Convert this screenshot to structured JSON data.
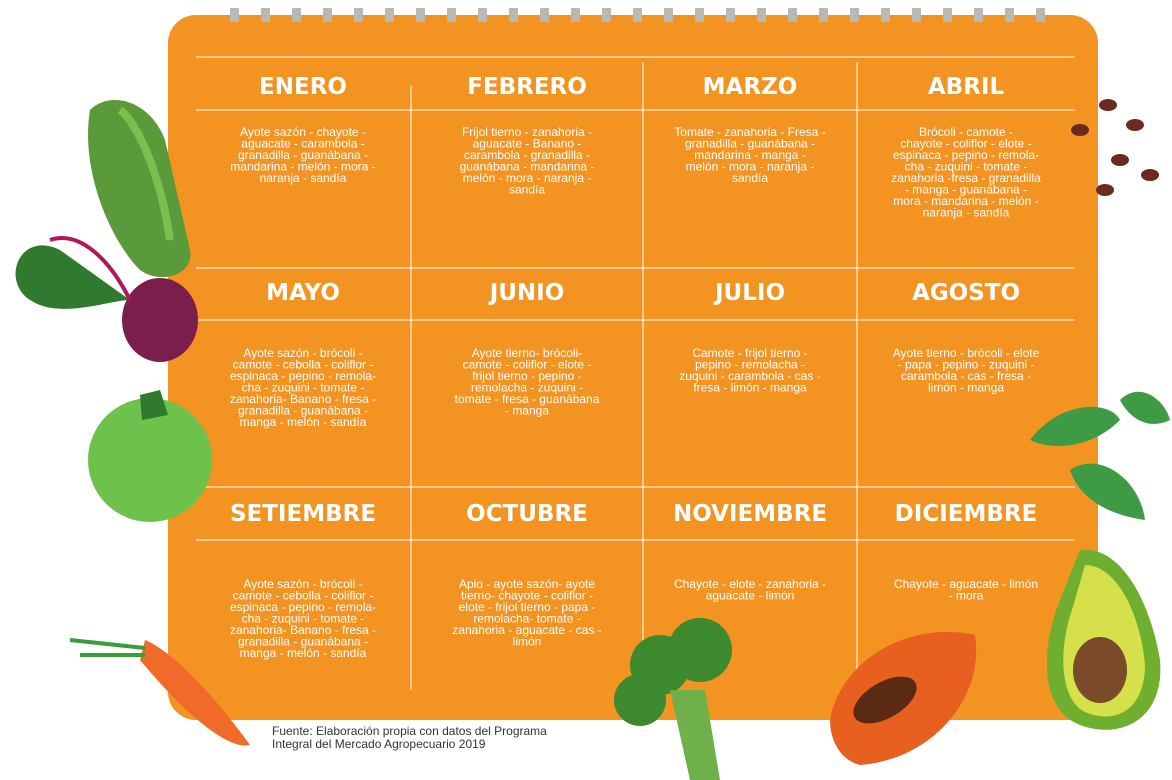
{
  "months": [
    {
      "name": "ENERO",
      "lines": [
        "Ayote sazón - chayote -",
        "aguacate - carambola -",
        "granadilla - guanábana -",
        "mandarina - melón - mora -",
        "naranja - sandía"
      ]
    },
    {
      "name": "FEBRERO",
      "lines": [
        "Frijol tierno - zanahoria -",
        "aguacate - Banano -",
        "carambola - granadilla -",
        "guanábana - mandarina -",
        "melón - mora - naranja -",
        "sandía"
      ]
    },
    {
      "name": "MARZO",
      "lines": [
        "Tomate - zanahoria - Fresa -",
        "granadilla - guanábana -",
        "mandarina - manga -",
        "melón - mora - naranja -",
        "sandía"
      ]
    },
    {
      "name": "ABRIL",
      "lines": [
        "Brócoli - camote -",
        "chayote - coliflor - elote -",
        "espinaca - pepino - remola-",
        "cha - zuquini - tomate -",
        "zanahoria -fresa - granadilla",
        "- manga - guanábana -",
        "mora - mandarina - melón -",
        "naranja - sandía"
      ]
    },
    {
      "name": "MAYO",
      "lines": [
        "Ayote sazón - brócoli -",
        "camote - cebolla - coliflor -",
        "espinaca - pepino - remola-",
        "cha - zuquini - tomate -",
        "zanahoria- Banano - fresa -",
        "granadilla - guanábana -",
        "manga - melón - sandía"
      ]
    },
    {
      "name": "JUNIO",
      "lines": [
        "Ayote tierno- brócoli-",
        "camote - coliflor - elote -",
        "frijol tierno - pepino -",
        "remolacha - zuquini -",
        "tomate - fresa - guanábana",
        "- manga"
      ]
    },
    {
      "name": "JULIO",
      "lines": [
        "Camote - frijol tierno -",
        "pepino - remolacha -",
        "zuquini - carambola - cas -",
        "fresa - limón - manga"
      ]
    },
    {
      "name": "AGOSTO",
      "lines": [
        "Ayote tierno - brócoli - elote",
        "- papa - pepino - zuquini -",
        "carambola - cas - fresa -",
        "limón - manga"
      ]
    },
    {
      "name": "SETIEMBRE",
      "lines": [
        "Ayote sazón - brócoli -",
        "camote - cebolla - coliflor -",
        "espinaca - pepino - remola-",
        "cha - zuquini - tomate -",
        "zanahoria- Banano - fresa -",
        "granadilla - guanábana -",
        "manga - melón - sandía"
      ]
    },
    {
      "name": "OCTUBRE",
      "lines": [
        "Apio - ayote sazón- ayote",
        "tierno- chayote - coliflor -",
        "elote - frijol tierno - papa -",
        "remolacha- tomate -",
        "zanahoria - aguacate - cas -",
        "limón"
      ]
    },
    {
      "name": "NOVIEMBRE",
      "lines": [
        "Chayote - elote - zanahoria -",
        "aguacate - limón"
      ]
    },
    {
      "name": "DICIEMBRE",
      "lines": [
        "Chayote - aguacate - limón",
        "- mora"
      ]
    }
  ],
  "source": [
    "Fuente: Elaboración propia con datos del Programa",
    "Integral del Mercado Agropecuario 2019"
  ]
}
